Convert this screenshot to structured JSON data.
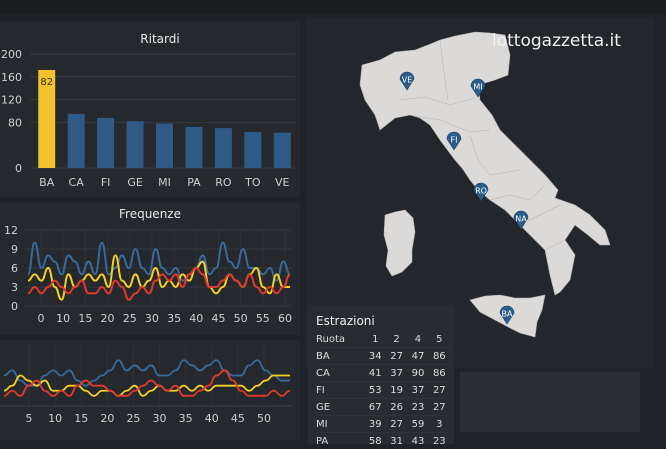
{
  "brand": "lottogazzetta.it",
  "colors": {
    "background": "#1f2226",
    "panel": "#25282d",
    "highlight_bar": "#f2c12e",
    "bar": "#2f5a86",
    "series_blue": "#3a6a9a",
    "series_yellow": "#f5d020",
    "series_red": "#e03a2e",
    "pin": "#2b5c8a",
    "map_land": "#dcdad8"
  },
  "chart_data": [
    {
      "type": "bar",
      "title": "Ritardi",
      "categories": [
        "BA",
        "CA",
        "FI",
        "GE",
        "MI",
        "PA",
        "RO",
        "TO",
        "VE"
      ],
      "values": [
        172,
        95,
        88,
        82,
        78,
        72,
        70,
        63,
        62
      ],
      "highlight_index": 0,
      "data_labels": [
        "82"
      ],
      "yticks": [
        "0",
        "80",
        "120",
        "160",
        "200"
      ],
      "ytick_values": [
        0,
        80,
        120,
        160,
        200
      ],
      "ylim": [
        0,
        200
      ],
      "grid": true
    },
    {
      "type": "line",
      "title": "Frequenze",
      "xticks": [
        "0",
        "10",
        "15",
        "20",
        "25",
        "30",
        "35",
        "40",
        "45",
        "50",
        "55",
        "60"
      ],
      "yticks": [
        "0",
        "3",
        "6",
        "9",
        "12"
      ],
      "ylim": [
        0,
        12
      ],
      "grid": true,
      "series": [
        {
          "color": "#3a6a9a",
          "values": [
            5,
            10,
            6,
            8,
            7,
            5,
            8,
            7,
            5,
            7,
            5,
            10,
            5,
            6,
            8,
            6,
            9,
            6,
            5,
            9,
            6,
            5,
            6,
            4,
            5,
            6,
            8,
            5,
            6,
            10,
            7,
            6,
            9,
            6,
            6,
            5,
            6,
            4,
            7,
            5
          ]
        },
        {
          "color": "#f5d020",
          "values": [
            4,
            5,
            4,
            6,
            3,
            1,
            5,
            3,
            4,
            5,
            4,
            5,
            3,
            8,
            4,
            3,
            5,
            3,
            4,
            6,
            3,
            4,
            3,
            5,
            4,
            6,
            7,
            3,
            2,
            3,
            5,
            4,
            3,
            5,
            6,
            3,
            2,
            5,
            3,
            3
          ]
        },
        {
          "color": "#e03a2e",
          "values": [
            2,
            3,
            2,
            3,
            4,
            3,
            2,
            3,
            4,
            2,
            2,
            3,
            2,
            4,
            3,
            1,
            2,
            3,
            2,
            4,
            5,
            4,
            5,
            3,
            5,
            6,
            5,
            3,
            3,
            4,
            5,
            4,
            3,
            5,
            3,
            2,
            3,
            2,
            3,
            5
          ]
        }
      ]
    },
    {
      "type": "line",
      "xticks": [
        "5",
        "10",
        "15",
        "20",
        "25",
        "30",
        "35",
        "40",
        "45",
        "50"
      ],
      "grid": true,
      "series": [
        {
          "color": "#3a6a9a",
          "values": [
            6,
            7,
            5,
            4,
            4,
            6,
            7,
            6,
            7,
            5,
            4,
            5,
            6,
            7,
            9,
            7,
            8,
            7,
            8,
            6,
            6,
            7,
            9,
            8,
            7,
            8,
            9,
            7,
            6,
            6,
            8,
            9,
            7,
            6,
            5,
            5
          ]
        },
        {
          "color": "#f5d020",
          "values": [
            3,
            4,
            6,
            5,
            4,
            5,
            3,
            3,
            4,
            4,
            3,
            2,
            3,
            3,
            2,
            3,
            4,
            2,
            3,
            4,
            3,
            3,
            4,
            3,
            4,
            3,
            4,
            4,
            4,
            4,
            3,
            4,
            5,
            6,
            6,
            6
          ]
        },
        {
          "color": "#e03a2e",
          "values": [
            2,
            3,
            2,
            4,
            5,
            3,
            2,
            3,
            2,
            4,
            5,
            4,
            4,
            3,
            2,
            2,
            3,
            4,
            5,
            4,
            3,
            4,
            2,
            2,
            3,
            4,
            6,
            7,
            5,
            3,
            2,
            2,
            2,
            3,
            2,
            3
          ]
        }
      ]
    }
  ],
  "map": {
    "pins": [
      "VE",
      "MI",
      "FI",
      "RO",
      "NA",
      "BA"
    ]
  },
  "table": {
    "title": "Estrazioni",
    "headers": [
      "Ruota",
      "1",
      "2",
      "4",
      "5"
    ],
    "rows": [
      [
        "BA",
        "34",
        "27",
        "47",
        "86"
      ],
      [
        "CA",
        "41",
        "37",
        "90",
        "86"
      ],
      [
        "FI",
        "53",
        "19",
        "37",
        "27"
      ],
      [
        "GE",
        "67",
        "26",
        "23",
        "27"
      ],
      [
        "MI",
        "39",
        "27",
        "59",
        "3"
      ],
      [
        "PA",
        "58",
        "31",
        "43",
        "23"
      ]
    ]
  }
}
